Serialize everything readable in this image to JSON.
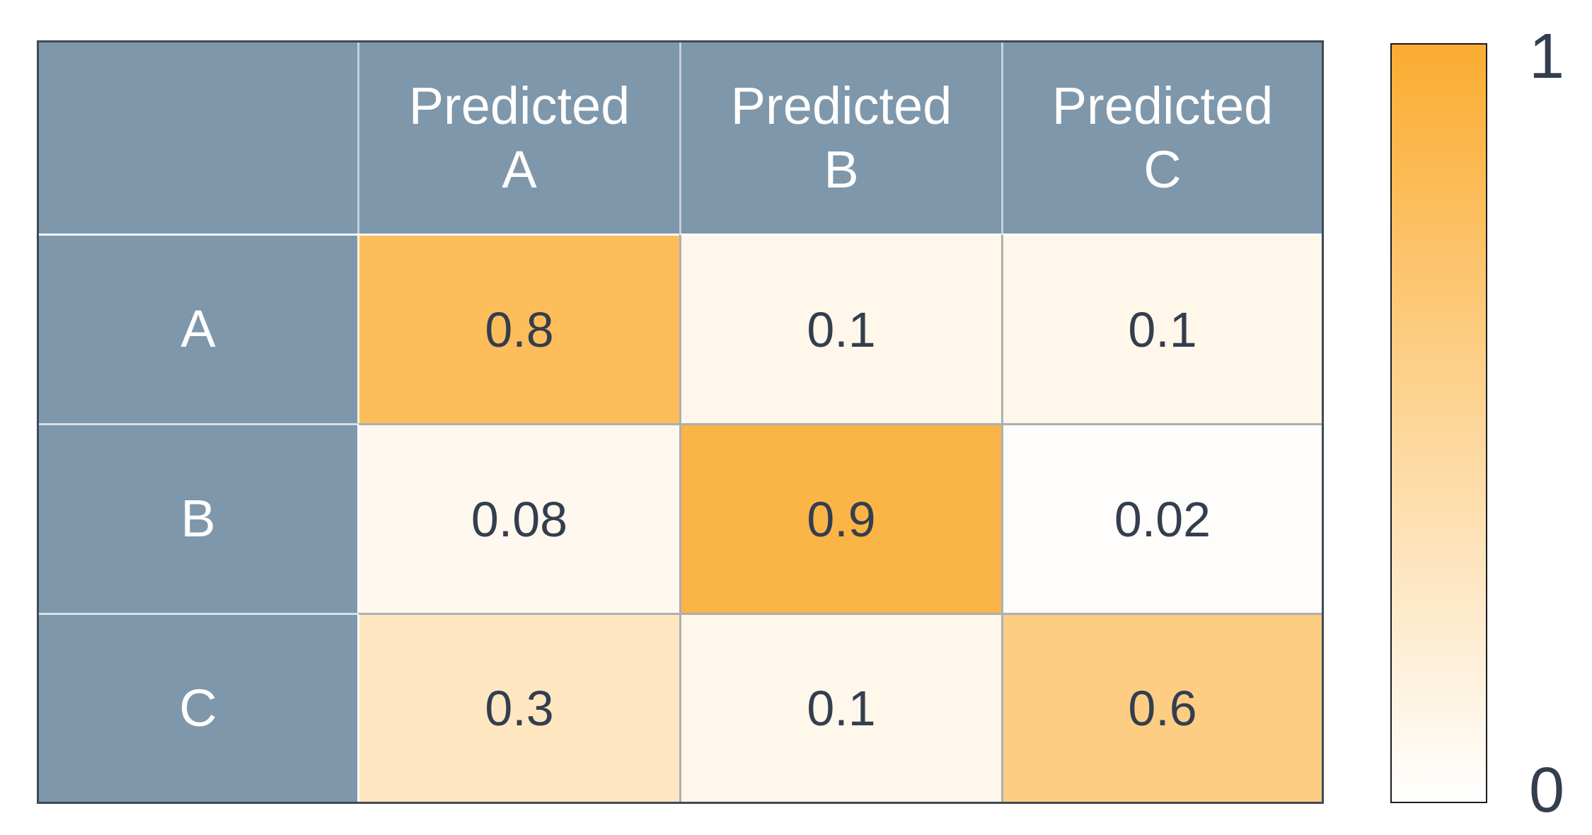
{
  "chart_data": {
    "type": "heatmap",
    "title": "",
    "rows": [
      "A",
      "B",
      "C"
    ],
    "columns": [
      "Predicted A",
      "Predicted B",
      "Predicted C"
    ],
    "column_header_lines": [
      [
        "Predicted",
        "A"
      ],
      [
        "Predicted",
        "B"
      ],
      [
        "Predicted",
        "C"
      ]
    ],
    "values": [
      [
        0.8,
        0.1,
        0.1
      ],
      [
        0.08,
        0.9,
        0.02
      ],
      [
        0.3,
        0.1,
        0.6
      ]
    ],
    "value_labels": [
      [
        "0.8",
        "0.1",
        "0.1"
      ],
      [
        "0.08",
        "0.9",
        "0.02"
      ],
      [
        "0.3",
        "0.1",
        "0.6"
      ]
    ],
    "colorbar": {
      "top_label": "1",
      "bottom_label": "0",
      "range": [
        0,
        1
      ],
      "orientation": "vertical",
      "position": "right"
    },
    "colors": {
      "header_bg": "#7e97ab",
      "header_text": "#ffffff",
      "cell_text": "#333e4e",
      "scale_min": "#ffffff",
      "scale_max": "#fbac31",
      "outer_border": "#3e4956",
      "data_grid_line": "#abb0b3",
      "light_grid_line": "#ffffff"
    },
    "grid": true,
    "legend_position": "right"
  }
}
